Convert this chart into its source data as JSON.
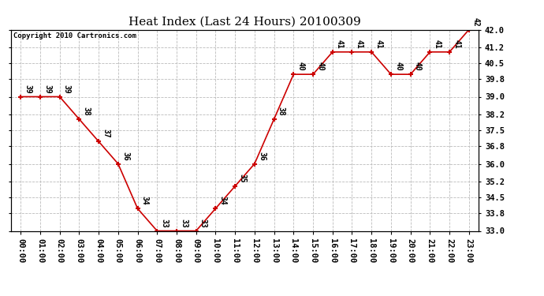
{
  "title": "Heat Index (Last 24 Hours) 20100309",
  "copyright": "Copyright 2010 Cartronics.com",
  "hours": [
    "00:00",
    "01:00",
    "02:00",
    "03:00",
    "04:00",
    "05:00",
    "06:00",
    "07:00",
    "08:00",
    "09:00",
    "10:00",
    "11:00",
    "12:00",
    "13:00",
    "14:00",
    "15:00",
    "16:00",
    "17:00",
    "18:00",
    "19:00",
    "20:00",
    "21:00",
    "22:00",
    "23:00"
  ],
  "values": [
    39,
    39,
    39,
    38,
    37,
    36,
    34,
    33,
    33,
    33,
    34,
    35,
    36,
    38,
    40,
    40,
    41,
    41,
    41,
    40,
    40,
    41,
    41,
    42
  ],
  "ylim_min": 33.0,
  "ylim_max": 42.0,
  "yticks": [
    33.0,
    33.8,
    34.5,
    35.2,
    36.0,
    36.8,
    37.5,
    38.2,
    39.0,
    39.8,
    40.5,
    41.2,
    42.0
  ],
  "line_color": "#cc0000",
  "marker_color": "#cc0000",
  "bg_color": "#ffffff",
  "grid_color": "#bbbbbb",
  "title_fontsize": 11,
  "copyright_fontsize": 6.5,
  "label_fontsize": 7,
  "tick_fontsize": 7.5
}
